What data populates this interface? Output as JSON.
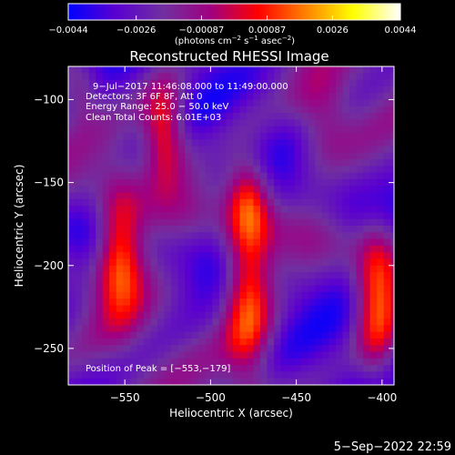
{
  "chart_data": {
    "type": "heatmap",
    "title": "Reconstructed RHESSI Image",
    "xlabel": "Heliocentric X (arcsec)",
    "ylabel": "Heliocentric Y (arcsec)",
    "xlim": [
      -583,
      -393
    ],
    "ylim": [
      -272,
      -80
    ],
    "x_ticks": [
      -550,
      -500,
      -450,
      -400
    ],
    "x_tick_labels": [
      "−550",
      "−500",
      "−450",
      "−400"
    ],
    "y_ticks": [
      -100,
      -150,
      -200,
      -250
    ],
    "y_tick_labels": [
      "−100",
      "−150",
      "−200",
      "−250"
    ],
    "colorbar": {
      "min": -0.0044,
      "max": 0.0044,
      "ticks": [
        -0.0044,
        -0.0026,
        -0.00087,
        0.00087,
        0.0026,
        0.0044
      ],
      "tick_labels": [
        "−0.0044",
        "−0.0026",
        "−0.00087",
        "0.00087",
        "0.0026",
        "0.0044"
      ],
      "units_text": "(photons cm",
      "units_exp1": "−2",
      "units_mid": " s",
      "units_exp2": "−1",
      "units_end": " asec",
      "units_exp3": "−2",
      "units_close": ")",
      "colors": [
        "#0000ff",
        "#5a00d0",
        "#7030a0",
        "#a00080",
        "#ff0000",
        "#ff8000",
        "#ffff00",
        "#ffffff"
      ]
    },
    "info_lines": [
      "9−Jul−2017 11:46:08.000 to 11:49:00.000",
      "Detectors: 3F 6F 8F, Att 0",
      "Energy Range: 25.0 − 50.0 keV",
      "Clean     Total Counts: 6.01E+03"
    ],
    "peak_label": "Position of Peak = [−553,−179]",
    "sources": [
      {
        "x": -553,
        "y": -190,
        "sx": 10,
        "sy": 28,
        "amp": 0.0044
      },
      {
        "x": -527,
        "y": -118,
        "sx": 9,
        "sy": 22,
        "amp": 0.004
      },
      {
        "x": -478,
        "y": -212,
        "sx": 10,
        "sy": 42,
        "amp": 0.0042
      },
      {
        "x": -478,
        "y": -158,
        "sx": 9,
        "sy": 16,
        "amp": 0.0025
      },
      {
        "x": -403,
        "y": -220,
        "sx": 9,
        "sy": 32,
        "amp": 0.0042
      },
      {
        "x": -435,
        "y": -110,
        "sx": 12,
        "sy": 20,
        "amp": 0.002
      },
      {
        "x": -575,
        "y": -95,
        "sx": 7,
        "sy": 12,
        "amp": 0.0014
      }
    ],
    "background": {
      "offset": -0.0026,
      "ripple": 0.0016
    }
  },
  "footer": {
    "timestamp": "5−Sep−2022 22:59"
  }
}
